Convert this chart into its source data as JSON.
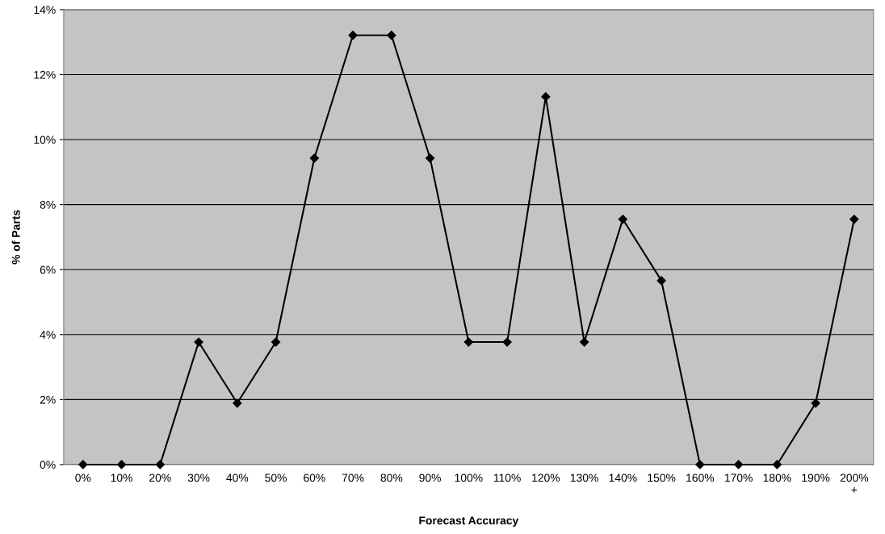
{
  "chart_data": {
    "type": "line",
    "xlabel": "Forecast Accuracy",
    "ylabel": "% of Parts",
    "categories": [
      "0%",
      "10%",
      "20%",
      "30%",
      "40%",
      "50%",
      "60%",
      "70%",
      "80%",
      "90%",
      "100%",
      "110%",
      "120%",
      "130%",
      "140%",
      "150%",
      "160%",
      "170%",
      "180%",
      "190%",
      "200%\n+"
    ],
    "series": [
      {
        "color": "#000000",
        "values": [
          0,
          0,
          0,
          3.77,
          1.89,
          3.77,
          9.43,
          13.21,
          13.21,
          9.43,
          3.77,
          3.77,
          11.32,
          3.77,
          7.55,
          5.66,
          0,
          0,
          0,
          1.89,
          7.55
        ]
      }
    ],
    "ylim": [
      0,
      14
    ],
    "yticks": [
      {
        "value": 0,
        "label": "0%"
      },
      {
        "value": 2,
        "label": "2%"
      },
      {
        "value": 4,
        "label": "4%"
      },
      {
        "value": 6,
        "label": "6%"
      },
      {
        "value": 8,
        "label": "8%"
      },
      {
        "value": 10,
        "label": "10%"
      },
      {
        "value": 12,
        "label": "12%"
      },
      {
        "value": 14,
        "label": "14%"
      }
    ],
    "grid": "y",
    "marker": "diamond",
    "line_style": "solid"
  }
}
